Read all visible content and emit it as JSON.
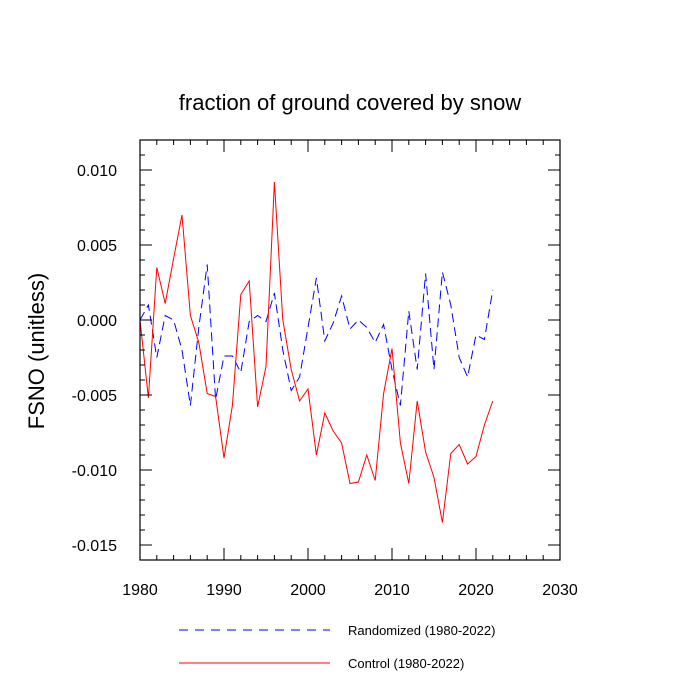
{
  "chart_data": {
    "type": "line",
    "title": "fraction of ground covered by snow",
    "xlabel": "",
    "ylabel": "FSNO  (unitless)",
    "xlim": [
      1980,
      2030
    ],
    "ylim": [
      -0.016,
      0.012
    ],
    "x_ticks": [
      1980,
      1990,
      2000,
      2010,
      2020,
      2030
    ],
    "x_tick_labels": [
      "1980",
      "1990",
      "2000",
      "2010",
      "2020",
      "2030"
    ],
    "y_ticks": [
      0.01,
      0.005,
      0.0,
      -0.005,
      -0.01,
      -0.015
    ],
    "y_tick_labels": [
      "0.010",
      "0.005",
      "0.000",
      "-0.005",
      "-0.010",
      "-0.015"
    ],
    "grid": false,
    "legend_position": "bottom",
    "series": [
      {
        "name": "Randomized (1980-2022)",
        "color": "#0000ff",
        "style": "dashed",
        "x": [
          1980,
          1981,
          1982,
          1983,
          1984,
          1985,
          1986,
          1987,
          1988,
          1989,
          1990,
          1991,
          1992,
          1993,
          1994,
          1995,
          1996,
          1997,
          1998,
          1999,
          2000,
          2001,
          2002,
          2003,
          2004,
          2005,
          2006,
          2007,
          2008,
          2009,
          2010,
          2011,
          2012,
          2013,
          2014,
          2015,
          2016,
          2017,
          2018,
          2019,
          2020,
          2021,
          2022
        ],
        "values": [
          0.0,
          0.001,
          -0.0025,
          0.0003,
          0.0,
          -0.002,
          -0.0057,
          -0.0005,
          0.0037,
          -0.0053,
          -0.0024,
          -0.0024,
          -0.0035,
          -0.0001,
          0.0003,
          -0.0001,
          0.0018,
          -0.002,
          -0.0047,
          -0.0038,
          -0.0005,
          0.0028,
          -0.0014,
          -0.0002,
          0.0016,
          -0.0006,
          0.0,
          -0.0005,
          -0.0015,
          -0.0003,
          -0.0033,
          -0.0057,
          0.0006,
          -0.0033,
          0.0031,
          -0.0033,
          0.0032,
          0.001,
          -0.0025,
          -0.0038,
          -0.001,
          -0.0013,
          0.002
        ]
      },
      {
        "name": "Control (1980-2022)",
        "color": "#ff0000",
        "style": "solid",
        "x": [
          1980,
          1981,
          1982,
          1983,
          1984,
          1985,
          1986,
          1987,
          1988,
          1989,
          1990,
          1991,
          1992,
          1993,
          1994,
          1995,
          1996,
          1997,
          1998,
          1999,
          2000,
          2001,
          2002,
          2003,
          2004,
          2005,
          2006,
          2007,
          2008,
          2009,
          2010,
          2011,
          2012,
          2013,
          2014,
          2015,
          2016,
          2017,
          2018,
          2019,
          2020,
          2021,
          2022
        ],
        "values": [
          0.0,
          -0.0052,
          0.0035,
          0.0011,
          0.0041,
          0.007,
          0.0003,
          -0.0015,
          -0.0049,
          -0.0051,
          -0.0092,
          -0.0057,
          0.0017,
          0.0026,
          -0.0058,
          -0.0031,
          0.0092,
          0.0,
          -0.0033,
          -0.0054,
          -0.0046,
          -0.009,
          -0.0062,
          -0.0074,
          -0.0082,
          -0.0109,
          -0.0108,
          -0.009,
          -0.0107,
          -0.0049,
          -0.0019,
          -0.0082,
          -0.0109,
          -0.0054,
          -0.0088,
          -0.0105,
          -0.0135,
          -0.0089,
          -0.0083,
          -0.0096,
          -0.0091,
          -0.007,
          -0.0054
        ]
      }
    ]
  }
}
